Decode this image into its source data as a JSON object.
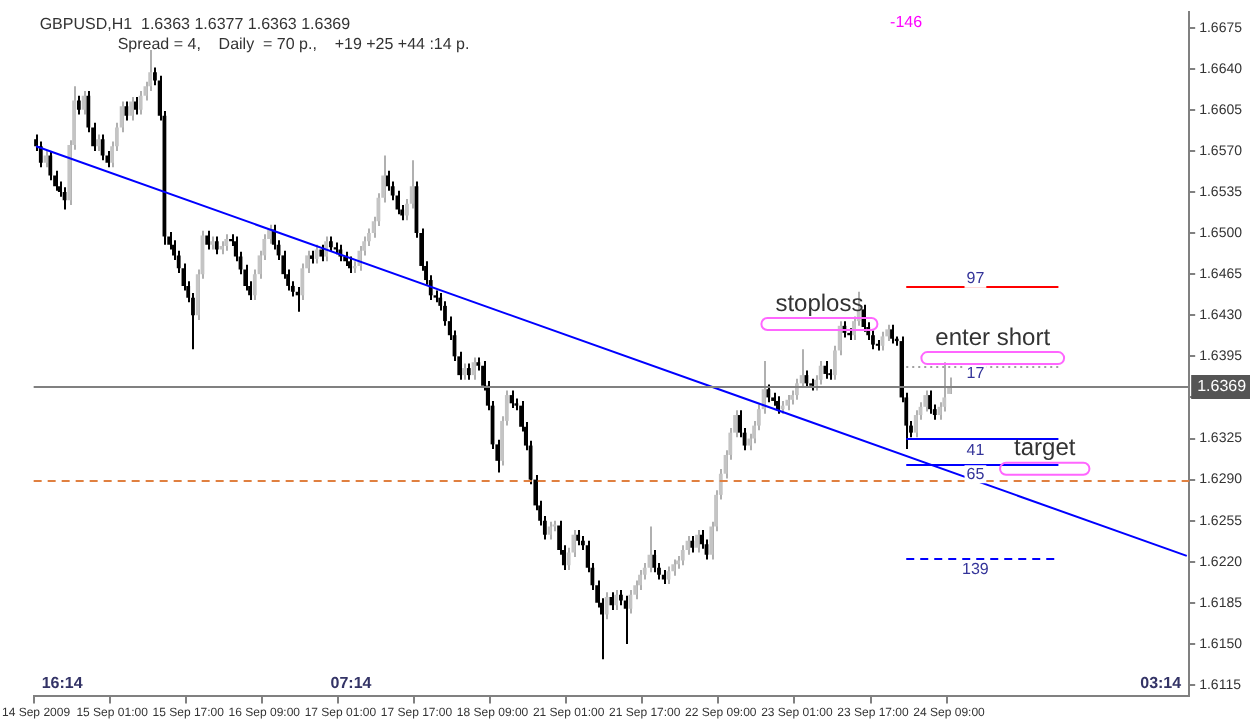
{
  "chart_data": {
    "type": "candlestick",
    "title": "GBPUSD,H1  1.6363 1.6377 1.6363 1.6369",
    "subtitle": "Spread = 4,    Daily  = 70 p.,    +19 +25 +44 :14 p.",
    "categories": [
      "14 Sep 2009",
      null,
      null,
      null,
      null,
      null,
      null,
      null,
      null,
      null,
      null,
      null,
      null,
      null,
      null,
      null,
      "15 Sep 01:00",
      null,
      null,
      null,
      null,
      null,
      null,
      null,
      null,
      null,
      null,
      null,
      null,
      null,
      null,
      null,
      "15 Sep 17:00",
      null,
      null,
      null,
      null,
      null,
      null,
      null,
      null,
      null,
      null,
      null,
      null,
      null,
      null,
      null,
      "16 Sep 09:00",
      null,
      null,
      null,
      null,
      null,
      null,
      null,
      null,
      null,
      null,
      null,
      null,
      null,
      null,
      null,
      "17 Sep 01:00",
      null,
      null,
      null,
      null,
      null,
      null,
      null,
      null,
      null,
      null,
      null,
      null,
      null,
      null,
      null,
      "17 Sep 17:00",
      null,
      null,
      null,
      null,
      null,
      null,
      null,
      null,
      null,
      null,
      null,
      null,
      null,
      null,
      null,
      "18 Sep 09:00",
      null,
      null,
      null,
      null,
      null,
      null,
      null,
      null,
      null,
      null,
      null,
      null,
      null,
      null,
      null,
      "21 Sep 01:00",
      null,
      null,
      null,
      null,
      null,
      null,
      null,
      null,
      null,
      null,
      null,
      null,
      null,
      null,
      null,
      "21 Sep 17:00",
      null,
      null,
      null,
      null,
      null,
      null,
      null,
      null,
      null,
      null,
      null,
      null,
      null,
      null,
      null,
      "22 Sep 09:00",
      null,
      null,
      null,
      null,
      null,
      null,
      null,
      null,
      null,
      null,
      null,
      null,
      null,
      null,
      null,
      "23 Sep 01:00",
      null,
      null,
      null,
      null,
      null,
      null,
      null,
      null,
      null,
      null,
      null,
      null,
      null,
      null,
      null,
      "23 Sep 17:00",
      null,
      null,
      null,
      null,
      null,
      null,
      null,
      null,
      null,
      null,
      null,
      null,
      null,
      null,
      null,
      "24 Sep 09:00",
      null,
      null,
      null,
      null,
      null,
      null,
      null,
      null,
      null,
      null,
      null,
      null,
      null,
      null,
      null,
      null,
      null,
      null,
      null,
      null,
      null,
      null,
      null,
      null,
      null,
      null,
      null,
      null,
      null,
      null,
      null,
      null,
      null,
      null,
      null,
      null,
      null,
      null,
      null,
      null,
      null,
      null,
      null,
      null,
      null,
      null,
      null,
      null,
      null,
      null
    ],
    "ohlc": [
      [
        1.658,
        1.6584,
        1.657,
        1.6574
      ],
      [
        1.6574,
        1.6578,
        1.6556,
        1.656
      ],
      [
        1.656,
        1.657,
        1.6556,
        1.6566
      ],
      [
        1.6566,
        1.657,
        1.6545,
        1.6549
      ],
      [
        1.6549,
        1.6553,
        1.6536,
        1.654
      ],
      [
        1.654,
        1.6544,
        1.6531,
        1.6535
      ],
      [
        1.6535,
        1.6539,
        1.652,
        1.6528
      ],
      [
        1.6528,
        1.6579,
        1.6524,
        1.6575
      ],
      [
        1.6575,
        1.6625,
        1.6571,
        1.6613
      ],
      [
        1.6613,
        1.6617,
        1.6601,
        1.6605
      ],
      [
        1.6605,
        1.6621,
        1.6601,
        1.6617
      ],
      [
        1.6617,
        1.6621,
        1.6586,
        1.659
      ],
      [
        1.659,
        1.6594,
        1.657,
        1.6574
      ],
      [
        1.6574,
        1.6584,
        1.657,
        1.658
      ],
      [
        1.658,
        1.6584,
        1.6562,
        1.6566
      ],
      [
        1.6566,
        1.657,
        1.6556,
        1.656
      ],
      [
        1.656,
        1.6578,
        1.6556,
        1.6574
      ],
      [
        1.6574,
        1.6594,
        1.657,
        1.659
      ],
      [
        1.659,
        1.6612,
        1.6586,
        1.6608
      ],
      [
        1.6608,
        1.6612,
        1.6596,
        1.66
      ],
      [
        1.66,
        1.6616,
        1.6596,
        1.6612
      ],
      [
        1.6612,
        1.6616,
        1.6601,
        1.6605
      ],
      [
        1.6605,
        1.6621,
        1.6601,
        1.6617
      ],
      [
        1.6617,
        1.6629,
        1.6613,
        1.6625
      ],
      [
        1.6625,
        1.6656,
        1.6621,
        1.6637
      ],
      [
        1.6637,
        1.6641,
        1.6626,
        1.663
      ],
      [
        1.663,
        1.6634,
        1.6596,
        1.66
      ],
      [
        1.66,
        1.6604,
        1.649,
        1.6497
      ],
      [
        1.6497,
        1.6501,
        1.6486,
        1.649
      ],
      [
        1.649,
        1.6494,
        1.6477,
        1.6481
      ],
      [
        1.6481,
        1.6485,
        1.6466,
        1.647
      ],
      [
        1.647,
        1.6474,
        1.6451,
        1.6455
      ],
      [
        1.6455,
        1.6459,
        1.6441,
        1.6445
      ],
      [
        1.6445,
        1.6449,
        1.6401,
        1.643
      ],
      [
        1.643,
        1.6469,
        1.6426,
        1.6465
      ],
      [
        1.6465,
        1.6502,
        1.6461,
        1.6498
      ],
      [
        1.6498,
        1.6502,
        1.6486,
        1.649
      ],
      [
        1.649,
        1.6497,
        1.6486,
        1.6493
      ],
      [
        1.6493,
        1.6497,
        1.6482,
        1.6486
      ],
      [
        1.6486,
        1.6493,
        1.6482,
        1.6489
      ],
      [
        1.6489,
        1.6499,
        1.6485,
        1.6495
      ],
      [
        1.6495,
        1.6499,
        1.6489,
        1.6493
      ],
      [
        1.6493,
        1.6497,
        1.6476,
        1.648
      ],
      [
        1.648,
        1.6484,
        1.6465,
        1.6469
      ],
      [
        1.6469,
        1.6473,
        1.6451,
        1.6455
      ],
      [
        1.6455,
        1.6459,
        1.6443,
        1.6447
      ],
      [
        1.6447,
        1.6469,
        1.6443,
        1.6465
      ],
      [
        1.6465,
        1.6485,
        1.6461,
        1.6481
      ],
      [
        1.6481,
        1.6499,
        1.6477,
        1.6495
      ],
      [
        1.6495,
        1.6507,
        1.6491,
        1.6503
      ],
      [
        1.6503,
        1.6507,
        1.6486,
        1.649
      ],
      [
        1.649,
        1.6494,
        1.6477,
        1.6481
      ],
      [
        1.6481,
        1.6485,
        1.6461,
        1.6465
      ],
      [
        1.6465,
        1.6469,
        1.6451,
        1.6455
      ],
      [
        1.6455,
        1.6459,
        1.6446,
        1.645
      ],
      [
        1.645,
        1.6454,
        1.6433,
        1.6447
      ],
      [
        1.6447,
        1.6474,
        1.6443,
        1.647
      ],
      [
        1.647,
        1.6485,
        1.6466,
        1.6481
      ],
      [
        1.6481,
        1.6485,
        1.6474,
        1.6478
      ],
      [
        1.6478,
        1.649,
        1.6474,
        1.6486
      ],
      [
        1.6486,
        1.649,
        1.6476,
        1.648
      ],
      [
        1.648,
        1.6497,
        1.6476,
        1.6493
      ],
      [
        1.6493,
        1.6497,
        1.6484,
        1.6488
      ],
      [
        1.6488,
        1.6492,
        1.6482,
        1.6486
      ],
      [
        1.6486,
        1.649,
        1.6476,
        1.648
      ],
      [
        1.648,
        1.6484,
        1.6472,
        1.6476
      ],
      [
        1.6476,
        1.648,
        1.6466,
        1.647
      ],
      [
        1.647,
        1.6476,
        1.6466,
        1.6472
      ],
      [
        1.6472,
        1.6489,
        1.6468,
        1.6485
      ],
      [
        1.6485,
        1.6497,
        1.6481,
        1.6493
      ],
      [
        1.6493,
        1.6504,
        1.6489,
        1.65
      ],
      [
        1.65,
        1.6514,
        1.6496,
        1.651
      ],
      [
        1.651,
        1.6534,
        1.6506,
        1.653
      ],
      [
        1.653,
        1.6566,
        1.6526,
        1.6549
      ],
      [
        1.6549,
        1.6553,
        1.6536,
        1.654
      ],
      [
        1.654,
        1.6544,
        1.6528,
        1.6532
      ],
      [
        1.6532,
        1.6536,
        1.6516,
        1.652
      ],
      [
        1.652,
        1.6524,
        1.6511,
        1.6515
      ],
      [
        1.6515,
        1.6529,
        1.6511,
        1.6525
      ],
      [
        1.6525,
        1.6562,
        1.6521,
        1.654
      ],
      [
        1.654,
        1.6544,
        1.6496,
        1.65
      ],
      [
        1.65,
        1.6504,
        1.6468,
        1.6472
      ],
      [
        1.6472,
        1.6476,
        1.6456,
        1.646
      ],
      [
        1.646,
        1.6464,
        1.6443,
        1.6447
      ],
      [
        1.6447,
        1.6451,
        1.6441,
        1.6445
      ],
      [
        1.6445,
        1.6449,
        1.6434,
        1.6438
      ],
      [
        1.6438,
        1.6442,
        1.6421,
        1.6425
      ],
      [
        1.6425,
        1.6429,
        1.6409,
        1.6413
      ],
      [
        1.6413,
        1.6417,
        1.6391,
        1.6395
      ],
      [
        1.6395,
        1.6399,
        1.6375,
        1.6379
      ],
      [
        1.6379,
        1.6389,
        1.6375,
        1.6385
      ],
      [
        1.6385,
        1.6389,
        1.6375,
        1.6379
      ],
      [
        1.6379,
        1.6394,
        1.6375,
        1.639
      ],
      [
        1.639,
        1.6394,
        1.6383,
        1.6387
      ],
      [
        1.6387,
        1.6391,
        1.6366,
        1.637
      ],
      [
        1.637,
        1.6374,
        1.6349,
        1.6353
      ],
      [
        1.6353,
        1.6357,
        1.6316,
        1.632
      ],
      [
        1.632,
        1.6324,
        1.6296,
        1.6306
      ],
      [
        1.6306,
        1.6344,
        1.6302,
        1.634
      ],
      [
        1.634,
        1.6366,
        1.6336,
        1.6362
      ],
      [
        1.6362,
        1.6366,
        1.6351,
        1.6355
      ],
      [
        1.6355,
        1.6359,
        1.6349,
        1.6353
      ],
      [
        1.6353,
        1.6357,
        1.6331,
        1.6335
      ],
      [
        1.6335,
        1.6339,
        1.6315,
        1.6319
      ],
      [
        1.6319,
        1.6323,
        1.6286,
        1.629
      ],
      [
        1.629,
        1.6294,
        1.6264,
        1.6268
      ],
      [
        1.6268,
        1.6272,
        1.6251,
        1.6255
      ],
      [
        1.6255,
        1.6259,
        1.6239,
        1.6243
      ],
      [
        1.6243,
        1.6254,
        1.6239,
        1.625
      ],
      [
        1.625,
        1.6255,
        1.6246,
        1.6251
      ],
      [
        1.6251,
        1.6255,
        1.6226,
        1.623
      ],
      [
        1.623,
        1.6234,
        1.6213,
        1.6217
      ],
      [
        1.6217,
        1.6232,
        1.6213,
        1.6228
      ],
      [
        1.6228,
        1.6247,
        1.6224,
        1.6243
      ],
      [
        1.6243,
        1.6247,
        1.6234,
        1.6238
      ],
      [
        1.6238,
        1.6242,
        1.623,
        1.6234
      ],
      [
        1.6234,
        1.6238,
        1.6211,
        1.6215
      ],
      [
        1.6215,
        1.6219,
        1.6196,
        1.62
      ],
      [
        1.62,
        1.6204,
        1.6181,
        1.6185
      ],
      [
        1.6185,
        1.6189,
        1.6137,
        1.6175
      ],
      [
        1.6175,
        1.6194,
        1.6171,
        1.619
      ],
      [
        1.619,
        1.6194,
        1.6179,
        1.6183
      ],
      [
        1.6183,
        1.6196,
        1.6179,
        1.6192
      ],
      [
        1.6192,
        1.6196,
        1.6183,
        1.6187
      ],
      [
        1.6187,
        1.6191,
        1.615,
        1.618
      ],
      [
        1.618,
        1.6196,
        1.6176,
        1.6192
      ],
      [
        1.6192,
        1.6204,
        1.6188,
        1.62
      ],
      [
        1.62,
        1.6213,
        1.6196,
        1.6209
      ],
      [
        1.6209,
        1.6219,
        1.6205,
        1.6215
      ],
      [
        1.6215,
        1.625,
        1.6211,
        1.6226
      ],
      [
        1.6226,
        1.623,
        1.6211,
        1.6215
      ],
      [
        1.6215,
        1.6219,
        1.6205,
        1.6209
      ],
      [
        1.6209,
        1.6213,
        1.6201,
        1.6205
      ],
      [
        1.6205,
        1.6216,
        1.6201,
        1.6212
      ],
      [
        1.6212,
        1.6222,
        1.6208,
        1.6218
      ],
      [
        1.6218,
        1.6225,
        1.6214,
        1.6221
      ],
      [
        1.6221,
        1.6234,
        1.6217,
        1.623
      ],
      [
        1.623,
        1.6242,
        1.6226,
        1.6238
      ],
      [
        1.6238,
        1.6242,
        1.6228,
        1.6232
      ],
      [
        1.6232,
        1.6247,
        1.6228,
        1.6243
      ],
      [
        1.6243,
        1.6247,
        1.6231,
        1.6235
      ],
      [
        1.6235,
        1.6239,
        1.6222,
        1.6226
      ],
      [
        1.6226,
        1.6254,
        1.6222,
        1.625
      ],
      [
        1.625,
        1.6281,
        1.6246,
        1.6277
      ],
      [
        1.6277,
        1.6299,
        1.6273,
        1.6295
      ],
      [
        1.6295,
        1.6315,
        1.6291,
        1.6311
      ],
      [
        1.6311,
        1.6334,
        1.6307,
        1.633
      ],
      [
        1.633,
        1.6349,
        1.6326,
        1.6345
      ],
      [
        1.6345,
        1.6349,
        1.6326,
        1.633
      ],
      [
        1.633,
        1.6334,
        1.6315,
        1.6319
      ],
      [
        1.6319,
        1.6329,
        1.6315,
        1.6325
      ],
      [
        1.6325,
        1.634,
        1.6321,
        1.6336
      ],
      [
        1.6336,
        1.6354,
        1.6332,
        1.635
      ],
      [
        1.635,
        1.6391,
        1.6346,
        1.6367
      ],
      [
        1.6367,
        1.6371,
        1.6356,
        1.636
      ],
      [
        1.636,
        1.6364,
        1.6353,
        1.6357
      ],
      [
        1.6357,
        1.6361,
        1.6346,
        1.635
      ],
      [
        1.635,
        1.6357,
        1.6346,
        1.6353
      ],
      [
        1.6353,
        1.6362,
        1.6349,
        1.6358
      ],
      [
        1.6358,
        1.6366,
        1.6354,
        1.6362
      ],
      [
        1.6362,
        1.6376,
        1.6358,
        1.6372
      ],
      [
        1.6372,
        1.6401,
        1.6368,
        1.6379
      ],
      [
        1.6379,
        1.6383,
        1.6368,
        1.6372
      ],
      [
        1.6372,
        1.6376,
        1.6366,
        1.637
      ],
      [
        1.637,
        1.6379,
        1.6366,
        1.6375
      ],
      [
        1.6375,
        1.6391,
        1.6371,
        1.6387
      ],
      [
        1.6387,
        1.6391,
        1.6376,
        1.638
      ],
      [
        1.638,
        1.6384,
        1.6375,
        1.6379
      ],
      [
        1.6379,
        1.6404,
        1.6375,
        1.64
      ],
      [
        1.64,
        1.6425,
        1.6396,
        1.6421
      ],
      [
        1.6421,
        1.6425,
        1.6411,
        1.6415
      ],
      [
        1.6415,
        1.6419,
        1.6409,
        1.6413
      ],
      [
        1.6413,
        1.6429,
        1.6409,
        1.6425
      ],
      [
        1.6425,
        1.645,
        1.6421,
        1.6435
      ],
      [
        1.6435,
        1.6439,
        1.6416,
        1.642
      ],
      [
        1.642,
        1.6424,
        1.6409,
        1.6413
      ],
      [
        1.6413,
        1.6417,
        1.6401,
        1.6405
      ],
      [
        1.6405,
        1.6409,
        1.64,
        1.6404
      ],
      [
        1.6404,
        1.6416,
        1.64,
        1.6412
      ],
      [
        1.6412,
        1.6422,
        1.6408,
        1.6418
      ],
      [
        1.6418,
        1.6422,
        1.6406,
        1.641
      ],
      [
        1.641,
        1.6412,
        1.6404,
        1.6408
      ],
      [
        1.6408,
        1.6412,
        1.6356,
        1.636
      ],
      [
        1.636,
        1.6364,
        1.6316,
        1.6336
      ],
      [
        1.6336,
        1.634,
        1.6326,
        1.633
      ],
      [
        1.633,
        1.6349,
        1.6326,
        1.6345
      ],
      [
        1.6345,
        1.6356,
        1.6341,
        1.6352
      ],
      [
        1.6352,
        1.6366,
        1.6348,
        1.6362
      ],
      [
        1.6362,
        1.6366,
        1.6346,
        1.635
      ],
      [
        1.635,
        1.6354,
        1.6341,
        1.6345
      ],
      [
        1.6345,
        1.6356,
        1.6341,
        1.6352
      ],
      [
        1.6352,
        1.639,
        1.6348,
        1.636
      ],
      [
        1.6363,
        1.6377,
        1.6363,
        1.6369
      ],
      null,
      null,
      null,
      null,
      null,
      null,
      null,
      null,
      null,
      null,
      null,
      null,
      null,
      null,
      null,
      null,
      null,
      null,
      null,
      null,
      null,
      null,
      null,
      null,
      null,
      null,
      null,
      null,
      null,
      null,
      null,
      null,
      null,
      null,
      null,
      null,
      null,
      null,
      null,
      null,
      null,
      null,
      null,
      null,
      null,
      null,
      null,
      null,
      null,
      null
    ],
    "series": [
      {
        "type": "line",
        "color": "#0000ff",
        "values": [
          1.6574,
          null,
          null,
          null,
          null,
          null,
          null,
          null,
          null,
          null,
          null,
          null,
          null,
          null,
          null,
          null,
          null,
          null,
          null,
          null,
          null,
          null,
          null,
          null,
          null,
          null,
          null,
          null,
          null,
          null,
          null,
          null,
          null,
          null,
          null,
          null,
          null,
          null,
          null,
          null,
          null,
          null,
          null,
          null,
          null,
          null,
          null,
          null,
          null,
          null,
          null,
          null,
          null,
          null,
          null,
          null,
          null,
          null,
          null,
          null,
          null,
          null,
          null,
          null,
          null,
          null,
          null,
          null,
          null,
          null,
          null,
          null,
          null,
          null,
          null,
          null,
          null,
          null,
          null,
          null,
          null,
          null,
          null,
          null,
          null,
          null,
          null,
          null,
          null,
          null,
          null,
          null,
          null,
          null,
          null,
          null,
          null,
          null,
          null,
          null,
          null,
          null,
          null,
          null,
          null,
          null,
          null,
          null,
          null,
          null,
          null,
          null,
          null,
          null,
          null,
          null,
          null,
          null,
          null,
          null,
          null,
          null,
          null,
          null,
          null,
          null,
          null,
          null,
          null,
          null,
          null,
          null,
          null,
          null,
          null,
          null,
          null,
          null,
          null,
          null,
          null,
          null,
          null,
          null,
          null,
          null,
          null,
          null,
          null,
          null,
          null,
          null,
          null,
          null,
          null,
          null,
          null,
          null,
          null,
          null,
          null,
          null,
          null,
          null,
          null,
          null,
          null,
          null,
          null,
          null,
          null,
          null,
          null,
          null,
          null,
          null,
          null,
          null,
          null,
          null,
          null,
          null,
          null,
          null,
          null,
          null,
          null,
          null,
          null,
          null,
          null,
          null,
          null,
          null,
          null,
          null,
          null,
          null,
          null,
          null,
          null,
          null,
          null,
          null,
          null,
          null,
          null,
          null,
          null,
          null,
          null,
          null,
          null,
          null,
          null,
          null,
          null,
          null,
          null,
          null,
          null,
          null,
          null,
          null,
          null,
          null,
          null,
          null,
          null,
          null,
          null,
          null,
          null,
          null,
          null,
          null,
          null,
          null,
          null,
          null,
          null,
          null,
          1.6225
        ]
      }
    ],
    "ylim": [
      1.6106,
      1.6688
    ],
    "yticks": [
      {
        "value": 1.6115,
        "label": "1.6115"
      },
      {
        "value": 1.615,
        "label": "1.6150"
      },
      {
        "value": 1.6185,
        "label": "1.6185"
      },
      {
        "value": 1.622,
        "label": "1.6220"
      },
      {
        "value": 1.6255,
        "label": "1.6255"
      },
      {
        "value": 1.629,
        "label": "1.6290"
      },
      {
        "value": 1.6325,
        "label": "1.6325"
      },
      {
        "value": 1.636,
        "label": null
      },
      {
        "value": 1.6395,
        "label": "1.6395"
      },
      {
        "value": 1.643,
        "label": "1.6430"
      },
      {
        "value": 1.6465,
        "label": "1.6465"
      },
      {
        "value": 1.65,
        "label": "1.6500"
      },
      {
        "value": 1.6535,
        "label": "1.6535"
      },
      {
        "value": 1.657,
        "label": "1.6570"
      },
      {
        "value": 1.6605,
        "label": "1.6605"
      },
      {
        "value": 1.664,
        "label": "1.6640"
      },
      {
        "value": 1.6675,
        "label": "1.6675"
      }
    ],
    "ref_lines": [
      {
        "axis": "y",
        "value": 1.6369,
        "label": "1.6369",
        "color": "#808080",
        "line_style": "solid"
      },
      {
        "axis": "y",
        "value": 1.629,
        "color": "#e08040",
        "line_style": "dashed"
      },
      {
        "axis": "y",
        "value": 1.6455,
        "color": "#ff0000",
        "line_style": "solid"
      },
      {
        "axis": "y",
        "value": 1.6387,
        "color": "#a0a0a0",
        "line_style": "dotted"
      },
      {
        "axis": "y",
        "value": 1.6326,
        "color": "#0000ff",
        "line_style": "solid"
      },
      {
        "axis": "y",
        "value": 1.6304,
        "color": "#0000ff",
        "line_style": "solid"
      },
      {
        "axis": "y",
        "value": 1.6223,
        "color": "#0000ff",
        "line_style": "dashed"
      }
    ],
    "annotations": [
      "stoploss",
      "target",
      "97",
      "17",
      "41",
      "65",
      "139",
      "enter short",
      "-146",
      "16:14",
      "07:14",
      "03:14"
    ],
    "grid": false,
    "legend": false
  }
}
